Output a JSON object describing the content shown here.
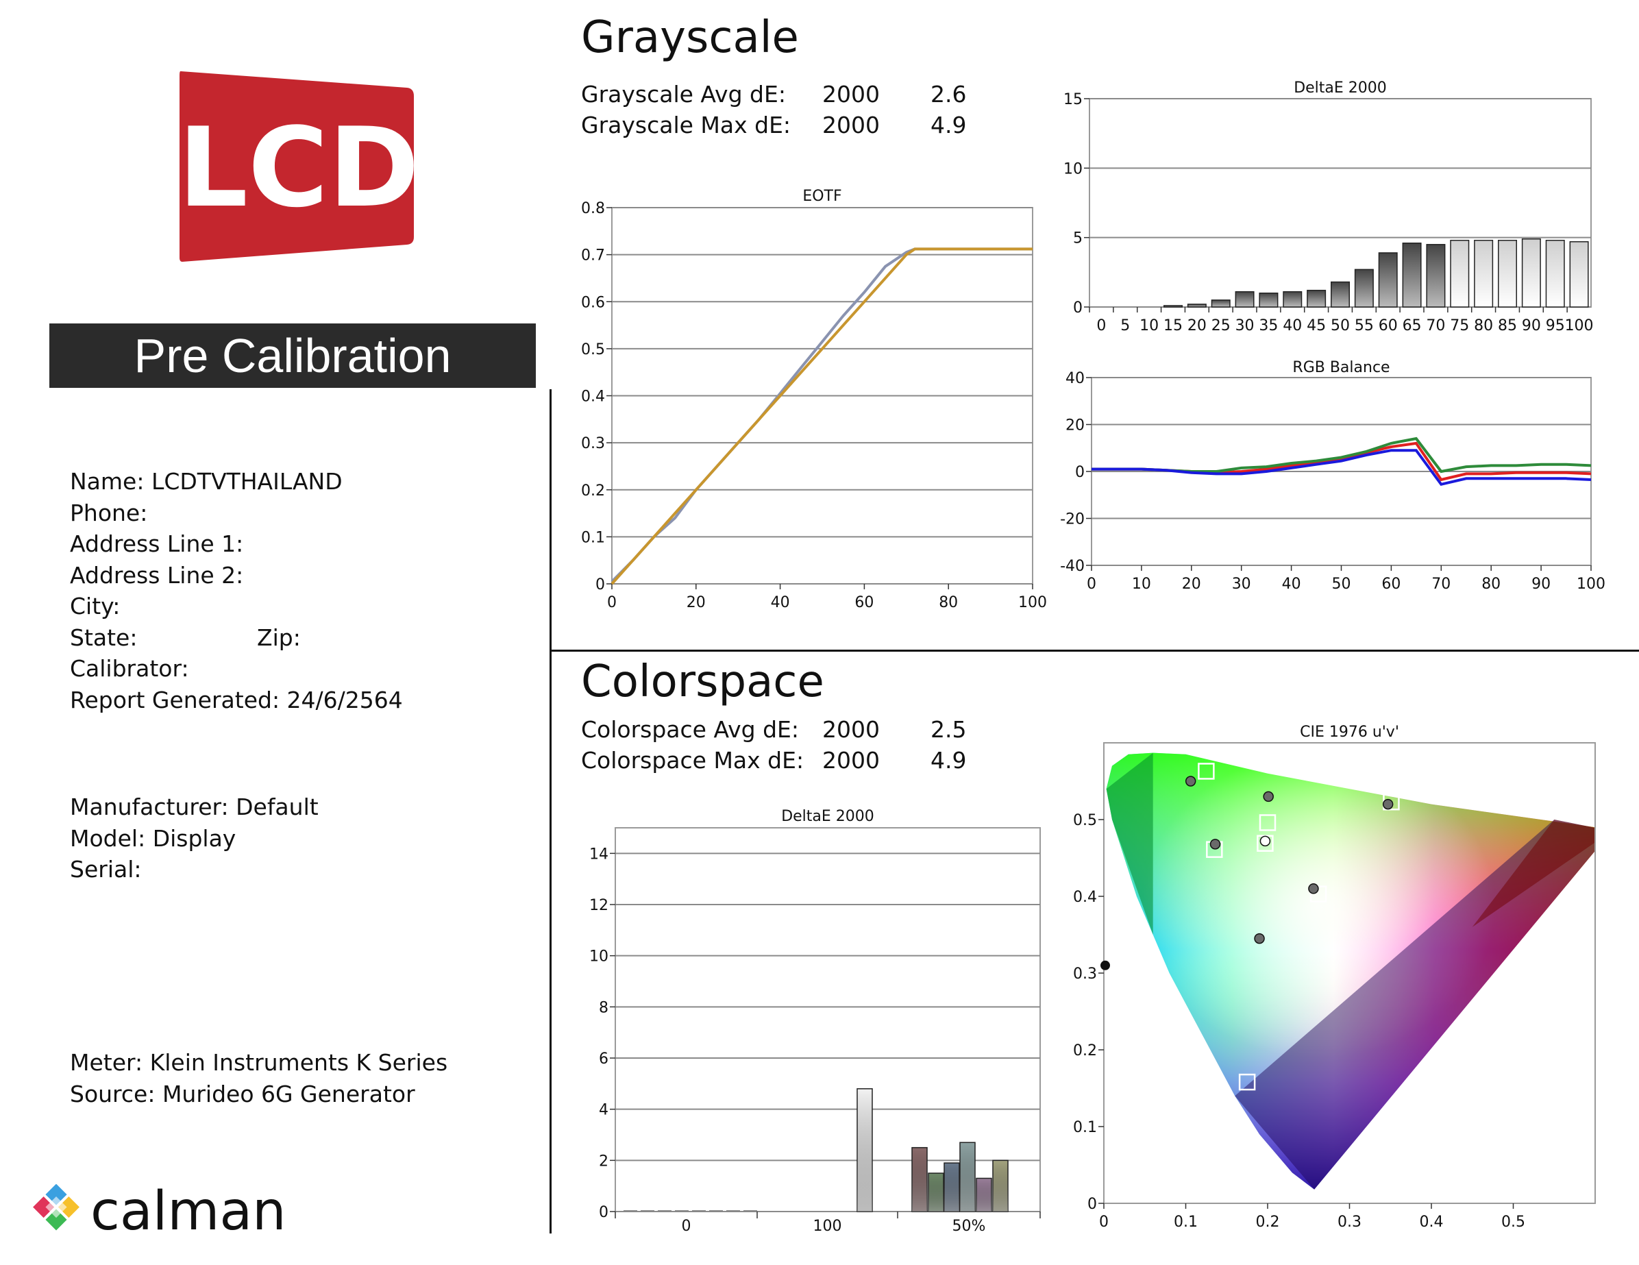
{
  "left": {
    "logo_text": "LCD",
    "badge": "Pre Calibration",
    "contact": {
      "name": "Name: LCDTVTHAILAND",
      "phone": "Phone:",
      "address1": "Address Line 1:",
      "address2": "Address Line 2:",
      "city": "City:",
      "state": "State:",
      "zip": "Zip:",
      "calibrator": "Calibrator:",
      "report": "Report Generated: 24/6/2564"
    },
    "device": {
      "manufacturer": "Manufacturer: Default",
      "model": "Model: Display",
      "serial": "Serial:"
    },
    "equipment": {
      "meter": "Meter: Klein Instruments K Series",
      "source": "Source: Murideo 6G Generator"
    },
    "brand": "calman"
  },
  "grayscale": {
    "title": "Grayscale",
    "avg_label": "Grayscale Avg dE:",
    "avg_std": "2000",
    "avg_val": "2.6",
    "max_label": "Grayscale Max dE:",
    "max_std": "2000",
    "max_val": "4.9"
  },
  "colorspace": {
    "title": "Colorspace",
    "avg_label": "Colorspace Avg dE:",
    "avg_std": "2000",
    "avg_val": "2.5",
    "max_label": "Colorspace Max dE:",
    "max_std": "2000",
    "max_val": "4.9"
  },
  "chart_data": [
    {
      "id": "eotf",
      "type": "line",
      "title": "EOTF",
      "xlim": [
        0,
        100
      ],
      "ylim": [
        0,
        0.8
      ],
      "xticks": [
        "0",
        "20",
        "40",
        "60",
        "80",
        "100"
      ],
      "yticks": [
        "0",
        "0.1",
        "0.2",
        "0.3",
        "0.4",
        "0.5",
        "0.6",
        "0.7",
        "0.8"
      ],
      "series": [
        {
          "color": "#8a93b0",
          "x": [
            0,
            5,
            10,
            15,
            20,
            25,
            30,
            35,
            40,
            45,
            50,
            55,
            60,
            65,
            70,
            72,
            75,
            80,
            85,
            90,
            95,
            100
          ],
          "y": [
            0.005,
            0.05,
            0.1,
            0.14,
            0.2,
            0.25,
            0.3,
            0.35,
            0.405,
            0.46,
            0.515,
            0.57,
            0.62,
            0.675,
            0.705,
            0.712,
            0.712,
            0.712,
            0.712,
            0.712,
            0.712,
            0.712
          ]
        },
        {
          "color": "#c8962e",
          "x": [
            0,
            5,
            10,
            15,
            20,
            25,
            30,
            35,
            40,
            45,
            50,
            55,
            60,
            65,
            70,
            72,
            75,
            80,
            85,
            90,
            95,
            100
          ],
          "y": [
            0,
            0.05,
            0.1,
            0.15,
            0.2,
            0.25,
            0.3,
            0.35,
            0.4,
            0.45,
            0.5,
            0.55,
            0.6,
            0.65,
            0.7,
            0.712,
            0.712,
            0.712,
            0.712,
            0.712,
            0.712,
            0.712
          ]
        }
      ]
    },
    {
      "id": "gs_de",
      "type": "bar",
      "title": "DeltaE 2000",
      "ylim": [
        0,
        15
      ],
      "yticks": [
        "0",
        "5",
        "10",
        "15"
      ],
      "categories": [
        "0",
        "5",
        "10",
        "15",
        "20",
        "25",
        "30",
        "35",
        "40",
        "45",
        "50",
        "55",
        "60",
        "65",
        "70",
        "75",
        "80",
        "85",
        "90",
        "95",
        "100"
      ],
      "values": [
        0,
        0,
        0,
        0.1,
        0.2,
        0.5,
        1.1,
        1.0,
        1.1,
        1.2,
        1.8,
        2.7,
        3.9,
        4.6,
        4.5,
        4.8,
        4.8,
        4.8,
        4.9,
        4.8,
        4.7
      ]
    },
    {
      "id": "rgb",
      "type": "line",
      "title": "RGB Balance",
      "xlim": [
        0,
        100
      ],
      "ylim": [
        -40,
        40
      ],
      "xticks": [
        "0",
        "10",
        "20",
        "30",
        "40",
        "50",
        "60",
        "70",
        "80",
        "90",
        "100"
      ],
      "yticks": [
        "-40",
        "-20",
        "0",
        "20",
        "40"
      ],
      "series": [
        {
          "color": "#e02020",
          "x": [
            0,
            5,
            10,
            15,
            20,
            25,
            30,
            35,
            40,
            45,
            50,
            55,
            60,
            65,
            70,
            75,
            80,
            85,
            90,
            95,
            100
          ],
          "y": [
            1,
            1,
            1,
            0.5,
            0,
            -0.5,
            0,
            1,
            2.5,
            4,
            5.5,
            8,
            10.5,
            12,
            -3.5,
            -1,
            -1,
            -0.5,
            -0.5,
            -0.5,
            -1
          ]
        },
        {
          "color": "#2e8b3a",
          "x": [
            0,
            5,
            10,
            15,
            20,
            25,
            30,
            35,
            40,
            45,
            50,
            55,
            60,
            65,
            70,
            75,
            80,
            85,
            90,
            95,
            100
          ],
          "y": [
            1,
            1,
            1,
            0.5,
            0,
            0,
            1.5,
            2,
            3.5,
            4.5,
            6,
            8.5,
            12,
            14,
            0,
            2,
            2.5,
            2.5,
            3,
            3,
            2.5
          ]
        },
        {
          "color": "#1a1adc",
          "x": [
            0,
            5,
            10,
            15,
            20,
            25,
            30,
            35,
            40,
            45,
            50,
            55,
            60,
            65,
            70,
            75,
            80,
            85,
            90,
            95,
            100
          ],
          "y": [
            1,
            1,
            1,
            0.5,
            -0.5,
            -1,
            -1,
            0,
            1.5,
            3,
            4.5,
            7,
            9,
            9,
            -5.5,
            -3,
            -3,
            -3,
            -3,
            -3,
            -3.5
          ]
        }
      ]
    },
    {
      "id": "cs_de",
      "type": "bar",
      "title": "DeltaE 2000",
      "ylim": [
        0,
        15
      ],
      "yticks": [
        "0",
        "2",
        "4",
        "6",
        "8",
        "10",
        "12",
        "14"
      ],
      "group_labels": [
        "0",
        "100",
        "50%"
      ],
      "values": [
        0,
        0,
        0,
        0,
        0,
        0,
        0,
        0,
        4.8,
        2.5,
        1.5,
        1.9,
        2.7,
        1.3,
        2.0
      ],
      "colors": [
        "#888",
        "#888",
        "#888",
        "#888",
        "#888",
        "#888",
        "#888",
        "#888",
        "#f2f2f2",
        "#8a6a6a",
        "#6f8a6a",
        "#6a7a8e",
        "#8ea3a3",
        "#9a7f9a",
        "#a3a37f"
      ]
    },
    {
      "id": "cie",
      "type": "scatter",
      "title": "CIE 1976 u'v'",
      "xlim": [
        0,
        0.6
      ],
      "ylim": [
        0,
        0.6
      ],
      "xticks": [
        "0",
        "0.1",
        "0.2",
        "0.3",
        "0.4",
        "0.5"
      ],
      "yticks": [
        "0",
        "0.1",
        "0.2",
        "0.3",
        "0.4",
        "0.5"
      ],
      "targets": [
        [
          0.351,
          0.523
        ],
        [
          0.125,
          0.563
        ],
        [
          0.175,
          0.158
        ],
        [
          0.197,
          0.469
        ],
        [
          0.262,
          0.403
        ],
        [
          0.135,
          0.461
        ],
        [
          0.2,
          0.496
        ]
      ],
      "measured": [
        [
          0.347,
          0.52
        ],
        [
          0.106,
          0.55
        ],
        [
          0.19,
          0.345
        ],
        [
          0.201,
          0.53
        ],
        [
          0.256,
          0.41
        ],
        [
          0.136,
          0.468
        ],
        [
          0.197,
          0.472
        ]
      ]
    }
  ]
}
